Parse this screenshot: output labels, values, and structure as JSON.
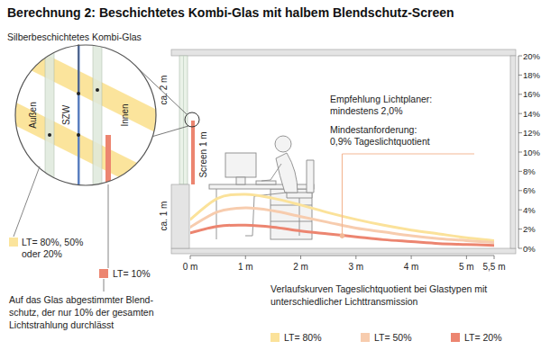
{
  "title": "Berechnung 2: Beschichtetes Kombi-Glas mit halbem Blendschutz-Screen",
  "glass_detail": {
    "label": "Silberbeschichtetes Kombi-Glas",
    "layers": [
      "Außen",
      "SZW",
      "Innen"
    ],
    "legend": [
      {
        "lines": [
          "LT= 80%, 50%",
          "oder 20%"
        ],
        "color": "#fbe49c"
      },
      {
        "lines": [
          "LT= 10%"
        ],
        "color": "#ec8570"
      }
    ],
    "note": [
      "Auf das Glas abgestimmter Blend-",
      "schutz, der nur 10% der gesamten",
      "Lichtstrahlung durchlässt"
    ]
  },
  "room": {
    "dimensions": [
      "ca. 2 m",
      "ca. 1 m",
      "Screen 1 m"
    ]
  },
  "chart_data": {
    "type": "line",
    "subtitle": [
      "Verlaufskurven Tageslichtquotient bei Glastypen mit",
      "unterschiedlicher Lichttransmission"
    ],
    "x": [
      0,
      0.5,
      1,
      1.5,
      2,
      2.5,
      3,
      3.5,
      4,
      4.5,
      5,
      5.5
    ],
    "series": [
      {
        "name": "LT= 80%",
        "color": "#fbe29a",
        "values": [
          3.0,
          5.2,
          5.6,
          5.2,
          4.5,
          3.7,
          3.0,
          2.4,
          1.9,
          1.5,
          1.1,
          0.8
        ]
      },
      {
        "name": "LT= 50%",
        "color": "#f7ccae",
        "values": [
          2.2,
          3.8,
          4.2,
          3.9,
          3.3,
          2.7,
          2.1,
          1.7,
          1.3,
          1.0,
          0.8,
          0.6
        ]
      },
      {
        "name": "LT= 20%",
        "color": "#ec8570",
        "values": [
          1.6,
          2.3,
          2.4,
          2.2,
          1.8,
          1.5,
          1.2,
          0.9,
          0.7,
          0.5,
          0.4,
          0.3
        ]
      }
    ],
    "xlim": [
      0,
      5.5
    ],
    "ylim": [
      0,
      20
    ],
    "xticks": [
      {
        "value": 0,
        "label": "0 m"
      },
      {
        "value": 1,
        "label": "1 m"
      },
      {
        "value": 2,
        "label": "2 m"
      },
      {
        "value": 3,
        "label": "3 m"
      },
      {
        "value": 4,
        "label": "4 m"
      },
      {
        "value": 5,
        "label": "5 m"
      },
      {
        "value": 5.5,
        "label": "5,5 m"
      }
    ],
    "yticks": [
      {
        "value": 0,
        "label": "0%"
      },
      {
        "value": 2,
        "label": "2%"
      },
      {
        "value": 4,
        "label": "4%"
      },
      {
        "value": 6,
        "label": "6%"
      },
      {
        "value": 8,
        "label": "8%"
      },
      {
        "value": 10,
        "label": "10%"
      },
      {
        "value": 12,
        "label": "12%"
      },
      {
        "value": 14,
        "label": "14%"
      },
      {
        "value": 16,
        "label": "16%"
      },
      {
        "value": 18,
        "label": "18%"
      },
      {
        "value": 20,
        "label": "20%"
      }
    ],
    "grid": false,
    "legend": "bottom",
    "annotations": [
      {
        "text": [
          "Empfehlung Lichtplaner:",
          "mindestens 2,0%"
        ]
      },
      {
        "text": [
          "Mindestanforderung:",
          "0,9% Tageslichtquotient"
        ],
        "point": {
          "x": 2.75,
          "y": 1.3
        }
      }
    ]
  }
}
